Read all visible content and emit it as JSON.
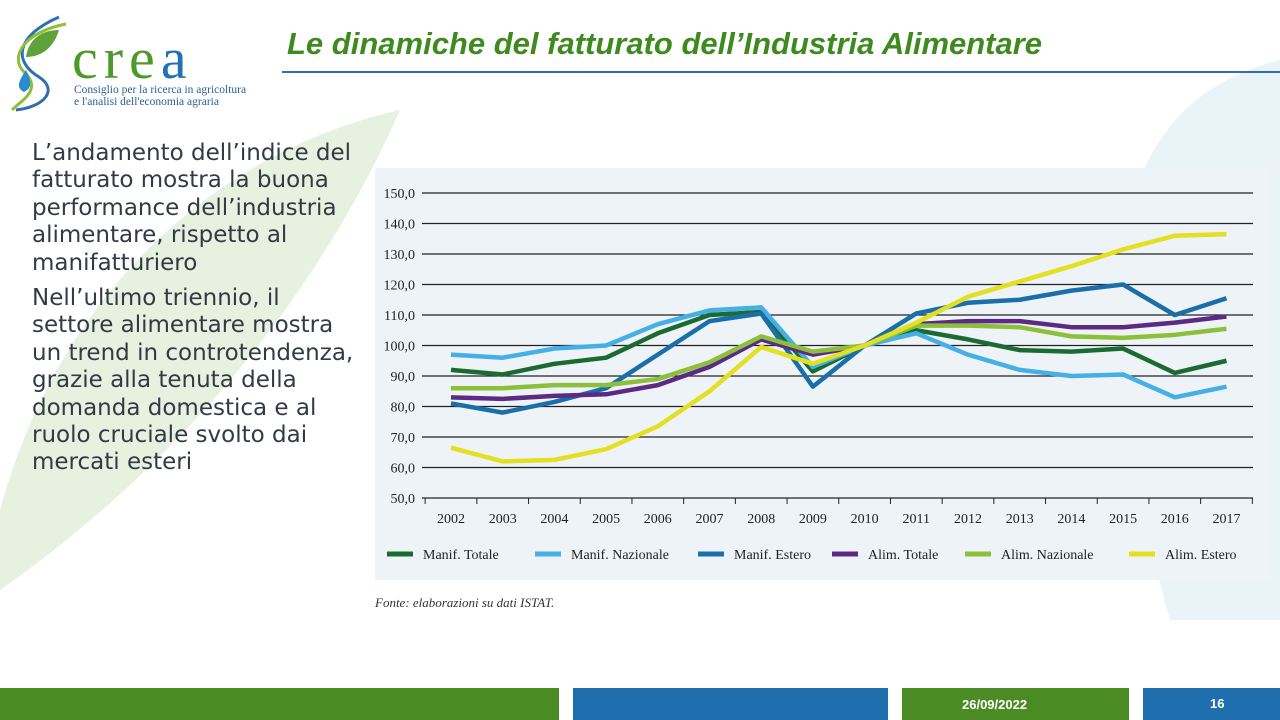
{
  "logo": {
    "word_main": "cre",
    "word_accent": "a",
    "subtitle_line1": "Consiglio per la ricerca in agricoltura",
    "subtitle_line2": "e l'analisi dell'economia agraria"
  },
  "title": "Le dinamiche del fatturato dell’Industria Alimentare",
  "body": {
    "paragraph1": "L’andamento dell’indice del fatturato mostra la buona performance dell’industria alimentare, rispetto al manifatturiero",
    "paragraph2": "Nell’ultimo triennio, il settore alimentare mostra un trend in controtendenza, grazie alla tenuta della domanda domestica e al ruolo cruciale svolto dai mercati esteri"
  },
  "source": "Fonte: elaborazioni su dati ISTAT.",
  "footer": {
    "date": "26/09/2022",
    "page": "16"
  },
  "chart_data": {
    "type": "line",
    "title": "",
    "xlabel": "",
    "ylabel": "",
    "x": [
      "2002",
      "2003",
      "2004",
      "2005",
      "2006",
      "2007",
      "2008",
      "2009",
      "2010",
      "2011",
      "2012",
      "2013",
      "2014",
      "2015",
      "2016",
      "2017"
    ],
    "ylim": [
      50,
      150
    ],
    "yticks": [
      "50,0",
      "60,0",
      "70,0",
      "80,0",
      "90,0",
      "100,0",
      "110,0",
      "120,0",
      "130,0",
      "140,0",
      "150,0"
    ],
    "grid": true,
    "legend_position": "bottom",
    "series": [
      {
        "name": "Manif. Totale",
        "color": "#1a6b32",
        "values": [
          92,
          90.5,
          94,
          96,
          104,
          110,
          111,
          91.5,
          100,
          105,
          102,
          98.5,
          98,
          99,
          91,
          95
        ]
      },
      {
        "name": "Manif. Nazionale",
        "color": "#45b0e5",
        "values": [
          97,
          96,
          99,
          100,
          107,
          111.5,
          112.5,
          93,
          100,
          104,
          97,
          92,
          90,
          90.5,
          83,
          86.5
        ]
      },
      {
        "name": "Manif. Estero",
        "color": "#1a6fa8",
        "values": [
          81,
          78,
          81.5,
          86,
          97,
          108,
          110.5,
          86.5,
          100,
          110.5,
          114,
          115,
          118,
          120,
          110,
          115.5
        ]
      },
      {
        "name": "Alim. Totale",
        "color": "#5c2a83",
        "values": [
          83,
          82.5,
          83.5,
          84,
          87,
          93,
          102,
          97,
          100,
          107,
          108,
          108,
          106,
          106,
          107.5,
          109.5
        ]
      },
      {
        "name": "Alim. Nazionale",
        "color": "#8dc03a",
        "values": [
          86,
          86,
          87,
          87,
          89,
          94.5,
          103,
          98,
          100,
          106.5,
          106.5,
          106,
          103,
          102.5,
          103.5,
          105.5
        ]
      },
      {
        "name": "Alim. Estero",
        "color": "#e2e020",
        "values": [
          66.5,
          62,
          62.5,
          66,
          73.5,
          85,
          99.5,
          94,
          100,
          107.5,
          116,
          121,
          126,
          131.5,
          136,
          136.5
        ]
      }
    ]
  },
  "colors": {
    "title": "#3f8a1f",
    "rule": "#2f6db5",
    "footer_green": "#4a8c23",
    "footer_blue": "#1f6fae"
  }
}
